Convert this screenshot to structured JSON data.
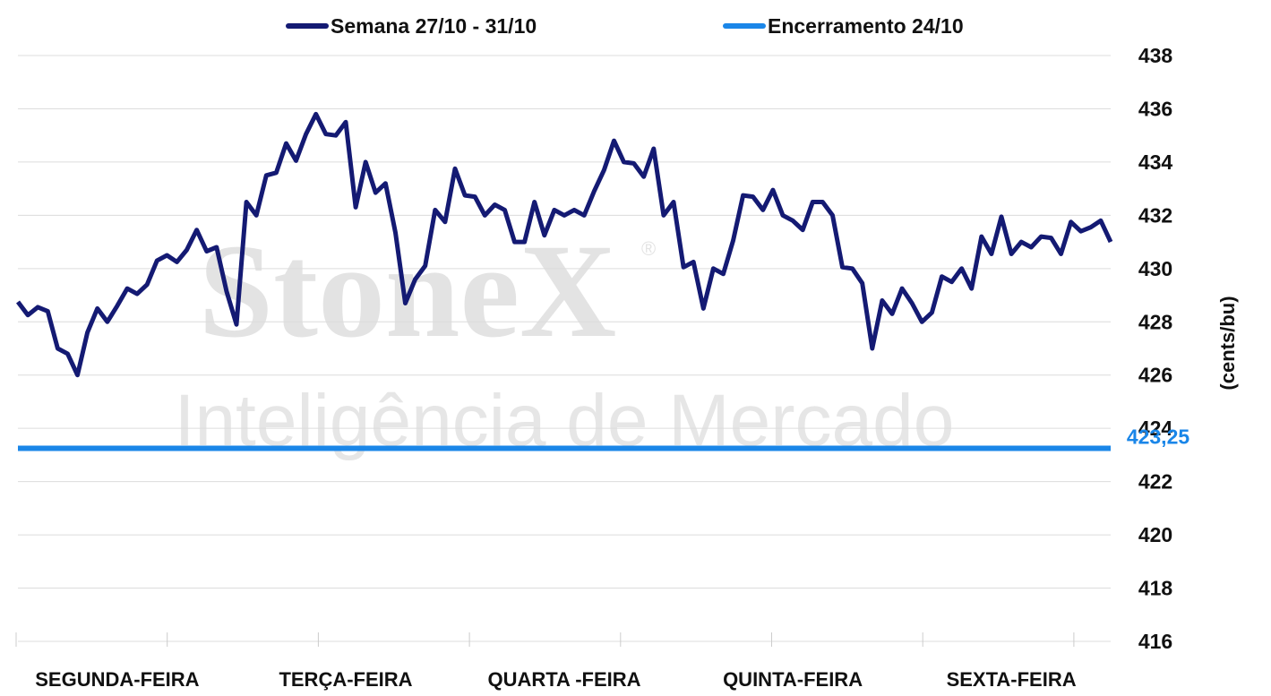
{
  "chart_data": {
    "type": "line",
    "watermark": {
      "brand": "StoneX",
      "mark": "®",
      "subtitle": "Inteligência de Mercado"
    },
    "y_axis_label": "(cents/bu)",
    "categories": [
      null,
      null,
      null,
      null,
      null,
      null,
      null,
      null,
      null,
      null,
      "SEGUNDA-FEIRA",
      null,
      null,
      null,
      null,
      null,
      null,
      null,
      null,
      null,
      null,
      null,
      null,
      null,
      null,
      null,
      null,
      null,
      null,
      null,
      null,
      null,
      null,
      "TERÇA-FEIRA",
      null,
      null,
      null,
      null,
      null,
      null,
      null,
      null,
      null,
      null,
      null,
      null,
      null,
      null,
      null,
      null,
      null,
      null,
      null,
      null,
      null,
      "QUARTA -FEIRA",
      null,
      null,
      null,
      null,
      null,
      null,
      null,
      null,
      null,
      null,
      null,
      null,
      null,
      null,
      null,
      null,
      null,
      null,
      null,
      null,
      null,
      null,
      "QUINTA-FEIRA",
      null,
      null,
      null,
      null,
      null,
      null,
      null,
      null,
      null,
      null,
      null,
      null,
      null,
      null,
      null,
      null,
      null,
      null,
      null,
      null,
      null,
      "SEXTA-FEIRA",
      null,
      null,
      null,
      null,
      null,
      null,
      null,
      null,
      null,
      null
    ],
    "series": [
      {
        "name": "Semana 27/10 - 31/10",
        "color": "#141a73",
        "values": [
          428.75,
          428.25,
          428.55,
          428.4,
          427,
          426.8,
          426,
          427.6,
          428.5,
          428,
          428.6,
          429.25,
          429.05,
          429.4,
          430.3,
          430.5,
          430.25,
          430.7,
          431.45,
          430.65,
          430.8,
          429.15,
          427.9,
          432.5,
          432,
          433.5,
          433.6,
          434.7,
          434.05,
          435.05,
          435.8,
          435.05,
          435,
          435.5,
          432.3,
          434,
          432.85,
          433.2,
          431.35,
          428.7,
          429.6,
          430.1,
          432.2,
          431.75,
          433.75,
          432.75,
          432.7,
          432,
          432.4,
          432.2,
          431,
          431,
          432.5,
          431.25,
          432.2,
          432,
          432.2,
          432,
          432.9,
          433.7,
          434.8,
          434,
          433.95,
          433.45,
          434.5,
          432,
          432.5,
          430.05,
          430.25,
          428.5,
          430,
          429.8,
          431.05,
          432.75,
          432.7,
          432.2,
          432.95,
          432,
          431.8,
          431.45,
          432.5,
          432.5,
          432,
          430.05,
          430,
          429.45,
          427,
          428.8,
          428.3,
          429.25,
          428.7,
          428,
          428.35,
          429.7,
          429.5,
          430,
          429.25,
          431.2,
          430.55,
          431.95,
          430.55,
          431,
          430.8,
          431.2,
          431.15,
          430.55,
          431.75,
          431.4,
          431.55,
          431.8,
          431
        ]
      },
      {
        "name": "Encerramento 24/10",
        "color": "#1a86e8",
        "type": "hline",
        "value": 423.25,
        "value_label": "423,25"
      }
    ],
    "ylim": [
      416,
      438
    ],
    "yticks": [
      416,
      418,
      420,
      422,
      424,
      426,
      428,
      430,
      432,
      434,
      436,
      438
    ],
    "grid": true,
    "y_axis_side": "right"
  }
}
